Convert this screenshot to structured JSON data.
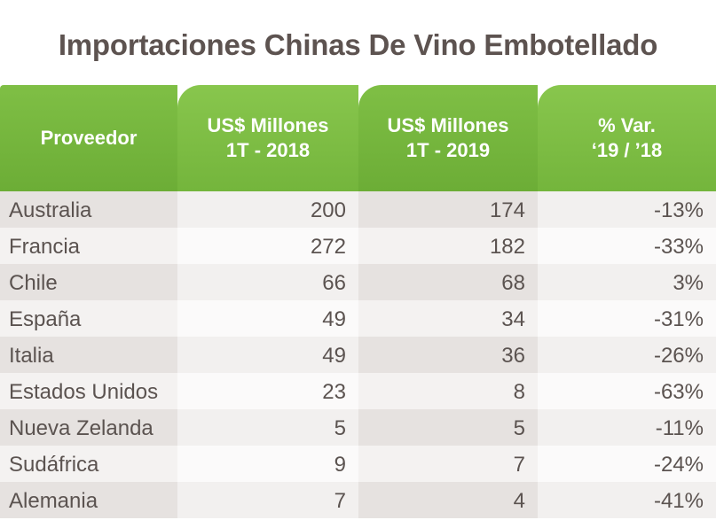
{
  "chart_data": {
    "type": "table",
    "title": "Importaciones Chinas De Vino Embotellado",
    "columns": [
      [
        "Proveedor"
      ],
      [
        "US$ Millones",
        "1T - 2018"
      ],
      [
        "US$ Millones",
        "1T - 2019"
      ],
      [
        "% Var.",
        "‘19 / ’18"
      ]
    ],
    "rows": [
      [
        "Australia",
        "200",
        "174",
        "-13%"
      ],
      [
        "Francia",
        "272",
        "182",
        "-33%"
      ],
      [
        "Chile",
        "66",
        "68",
        "3%"
      ],
      [
        "España",
        "49",
        "34",
        "-31%"
      ],
      [
        "Italia",
        "49",
        "36",
        "-26%"
      ],
      [
        "Estados Unidos",
        "23",
        "8",
        "-63%"
      ],
      [
        "Nueva Zelanda",
        "5",
        "5",
        "-11%"
      ],
      [
        "Sudáfrica",
        "9",
        "7",
        "-24%"
      ],
      [
        "Alemania",
        "7",
        "4",
        "-41%"
      ]
    ]
  },
  "colors": {
    "header_green": "#6cad36",
    "title_text": "#5d5350",
    "body_text": "#5b5350"
  }
}
